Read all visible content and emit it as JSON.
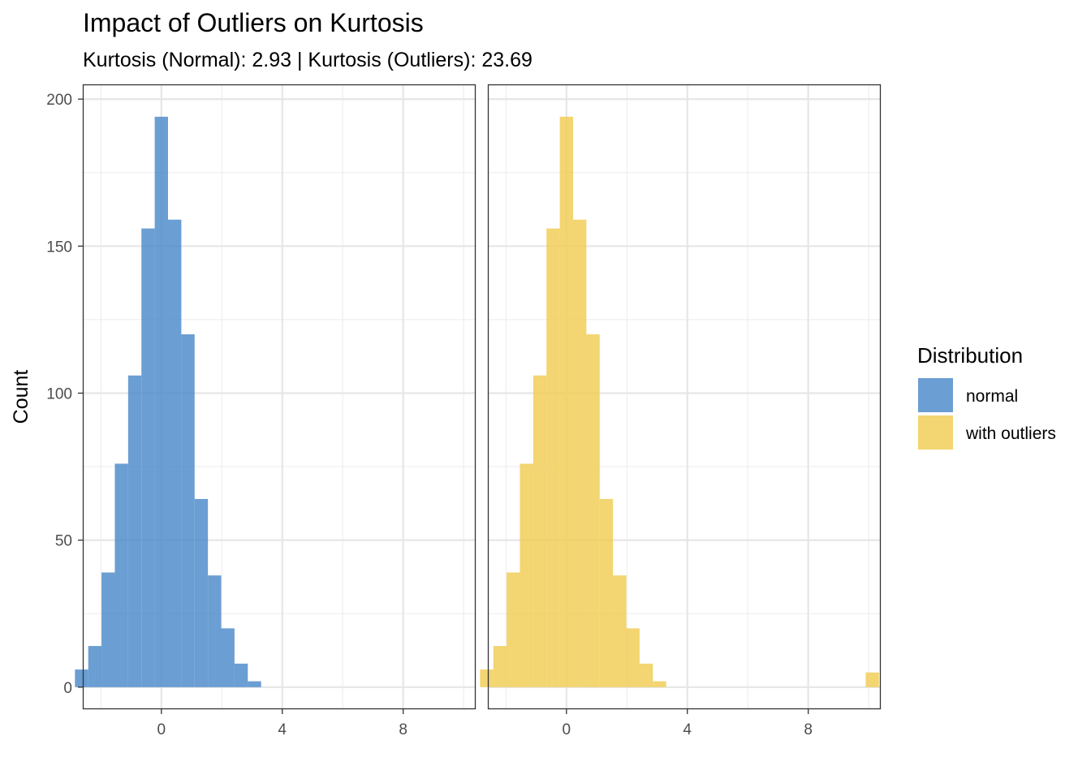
{
  "chart_data": {
    "type": "bar",
    "title": "Impact of Outliers on Kurtosis",
    "subtitle": "Kurtosis (Normal): 2.93 | Kurtosis (Outliers): 23.69",
    "xlabel": "",
    "ylabel": "Count",
    "ylim": [
      -7.5,
      205
    ],
    "yticks": [
      0,
      50,
      100,
      150,
      200
    ],
    "xlim": [
      -2.6,
      10.4
    ],
    "xticks": [
      0,
      4,
      8
    ],
    "grid": true,
    "bin_width": 0.44,
    "bin_centers": [
      -2.64,
      -2.2,
      -1.76,
      -1.32,
      -0.88,
      -0.44,
      0.0,
      0.44,
      0.88,
      1.32,
      1.76,
      2.2,
      2.64,
      3.08
    ],
    "series": [
      {
        "name": "normal",
        "color": "#4a89c9",
        "values": [
          6,
          14,
          39,
          76,
          106,
          156,
          194,
          159,
          120,
          64,
          38,
          20,
          8,
          2
        ],
        "outlier_bins": []
      },
      {
        "name": "with outliers",
        "color": "#f0cc52",
        "values": [
          6,
          14,
          39,
          76,
          106,
          156,
          194,
          159,
          120,
          64,
          38,
          20,
          8,
          2
        ],
        "outlier_bins": [
          {
            "x": 10.12,
            "count": 5
          }
        ]
      }
    ],
    "legend": {
      "title": "Distribution",
      "position": "right"
    }
  }
}
